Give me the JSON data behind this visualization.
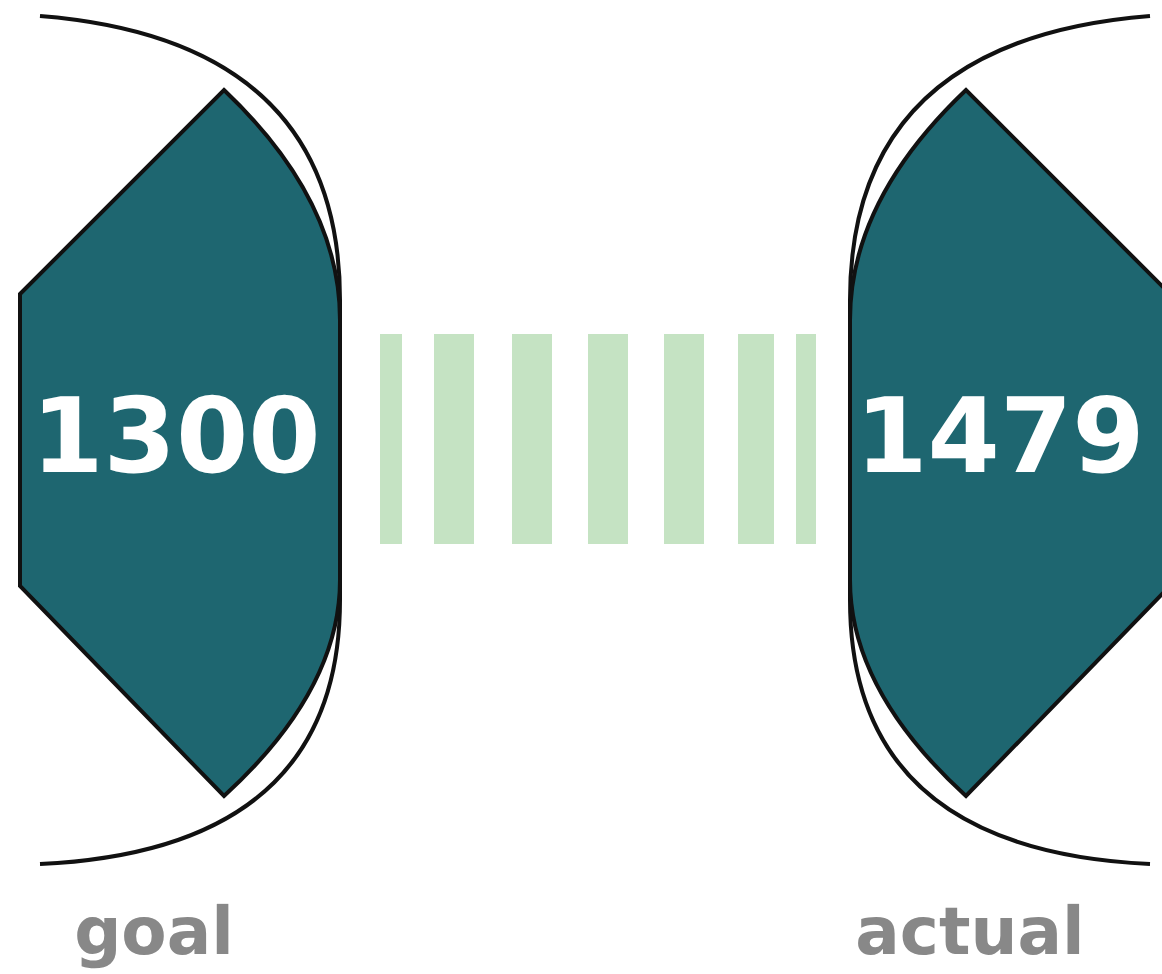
{
  "chart_data": {
    "type": "other",
    "categories": [
      "goal",
      "actual"
    ],
    "values": [
      1300,
      1479
    ],
    "data_labels": true,
    "colors": [
      "#1e6670",
      "#1e6670"
    ]
  }
}
